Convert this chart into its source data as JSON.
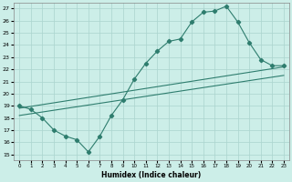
{
  "xlabel": "Humidex (Indice chaleur)",
  "bg_color": "#cceee8",
  "line_color": "#2e7d6e",
  "grid_color": "#aad4ce",
  "xlim": [
    -0.5,
    23.5
  ],
  "ylim": [
    14.5,
    27.5
  ],
  "xticks": [
    0,
    1,
    2,
    3,
    4,
    5,
    6,
    7,
    8,
    9,
    10,
    11,
    12,
    13,
    14,
    15,
    16,
    17,
    18,
    19,
    20,
    21,
    22,
    23
  ],
  "yticks": [
    15,
    16,
    17,
    18,
    19,
    20,
    21,
    22,
    23,
    24,
    25,
    26,
    27
  ],
  "line1_x": [
    0,
    1,
    2,
    3,
    4,
    5,
    6,
    7,
    8,
    9,
    10,
    11,
    12,
    13,
    14,
    15,
    16,
    17,
    18,
    19,
    20,
    21,
    22,
    23
  ],
  "line1_y": [
    19,
    18.7,
    18,
    17,
    16.5,
    16.2,
    15.2,
    16.5,
    18.2,
    19.5,
    21.2,
    22.5,
    23.5,
    24.3,
    24.5,
    25.9,
    26.7,
    26.8,
    27.2,
    25.9,
    24.2,
    22.8,
    22.3,
    22.3
  ],
  "line2_x": [
    0,
    23
  ],
  "line2_y": [
    18.8,
    22.2
  ],
  "line3_x": [
    0,
    23
  ],
  "line3_y": [
    18.2,
    21.5
  ]
}
